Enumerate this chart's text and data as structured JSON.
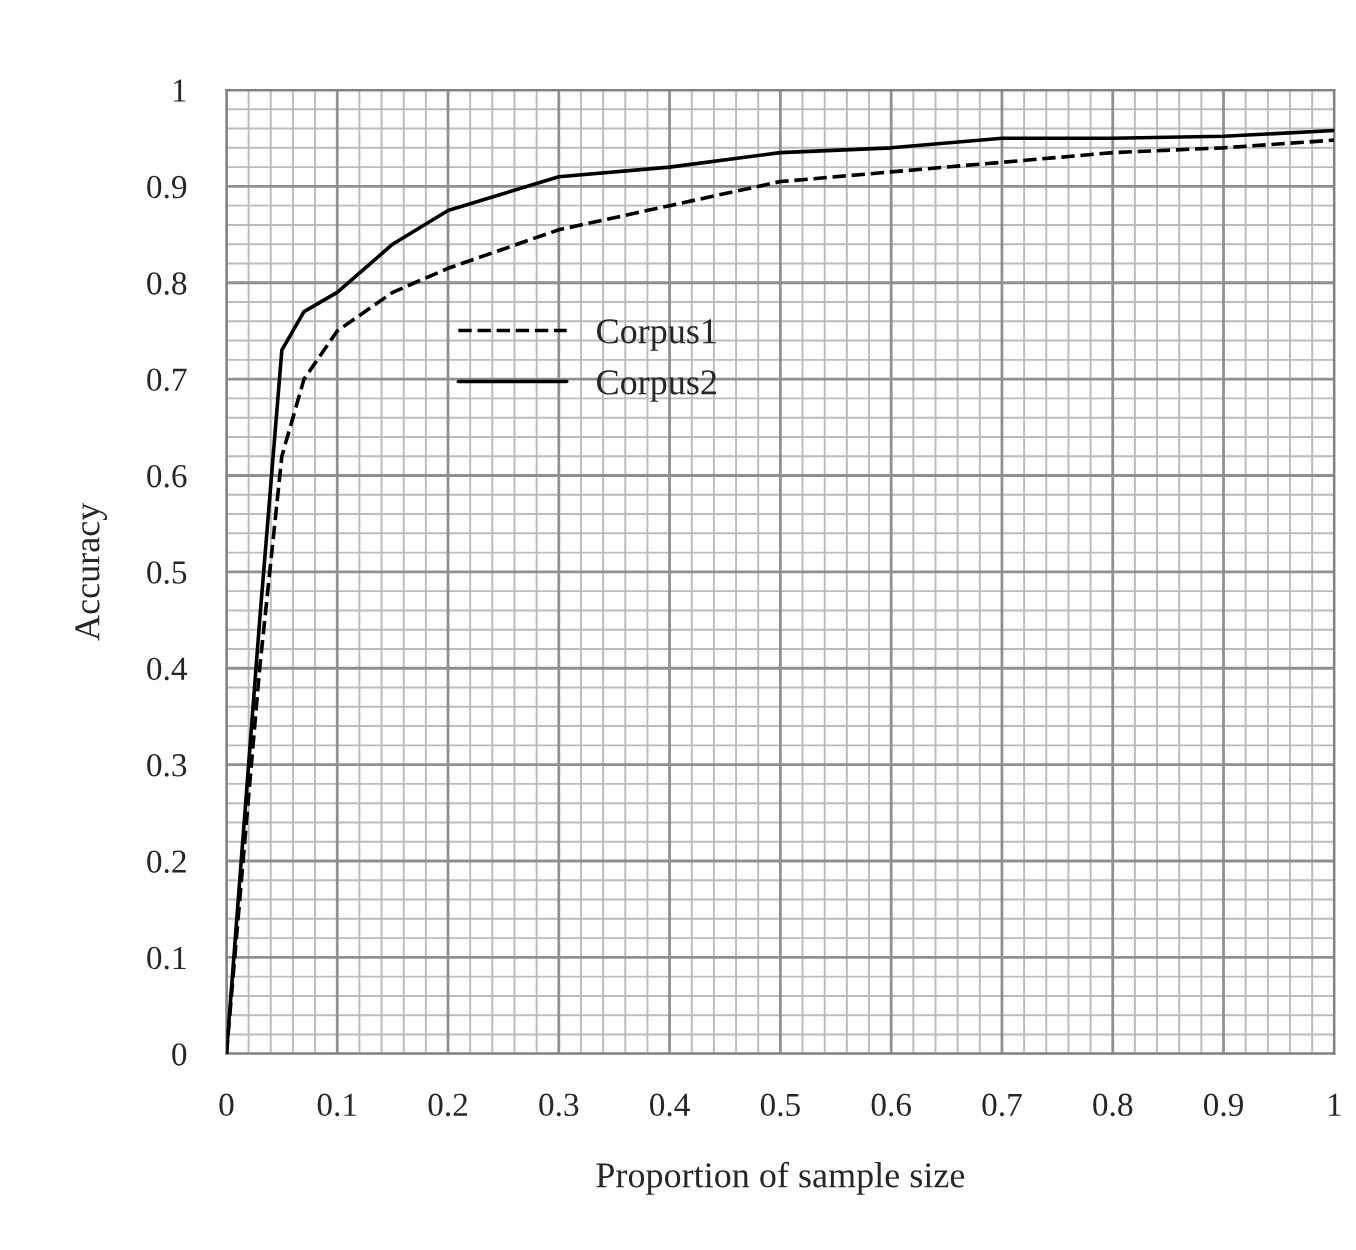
{
  "chart_data": {
    "type": "line",
    "xlabel": "Proportion of sample size",
    "ylabel": "Accuracy",
    "series": [
      {
        "name": "Corpus1",
        "color": "#000000",
        "line_style": "dashed",
        "x": [
          0,
          0.03,
          0.05,
          0.07,
          0.1,
          0.15,
          0.2,
          0.3,
          0.4,
          0.5,
          0.6,
          0.7,
          0.8,
          0.9,
          1
        ],
        "values": [
          0,
          0.4,
          0.62,
          0.7,
          0.75,
          0.79,
          0.815,
          0.855,
          0.88,
          0.905,
          0.915,
          0.925,
          0.935,
          0.94,
          0.948
        ]
      },
      {
        "name": "Corpus2",
        "color": "#000000",
        "line_style": "solid",
        "x": [
          0,
          0.03,
          0.05,
          0.07,
          0.1,
          0.15,
          0.2,
          0.3,
          0.4,
          0.5,
          0.6,
          0.7,
          0.8,
          0.9,
          1
        ],
        "values": [
          0,
          0.45,
          0.73,
          0.77,
          0.79,
          0.84,
          0.875,
          0.91,
          0.92,
          0.935,
          0.94,
          0.95,
          0.95,
          0.952,
          0.958
        ]
      }
    ],
    "xlim": [
      0,
      1
    ],
    "xticks": [
      0,
      0.1,
      0.2,
      0.3,
      0.4,
      0.5,
      0.6,
      0.7,
      0.8,
      0.9,
      1
    ],
    "ylim": [
      0,
      1
    ],
    "yticks": [
      0,
      0.1,
      0.2,
      0.3,
      0.4,
      0.5,
      0.6,
      0.7,
      0.8,
      0.9,
      1
    ],
    "grid": true,
    "legend": "center left",
    "marker": "none"
  }
}
